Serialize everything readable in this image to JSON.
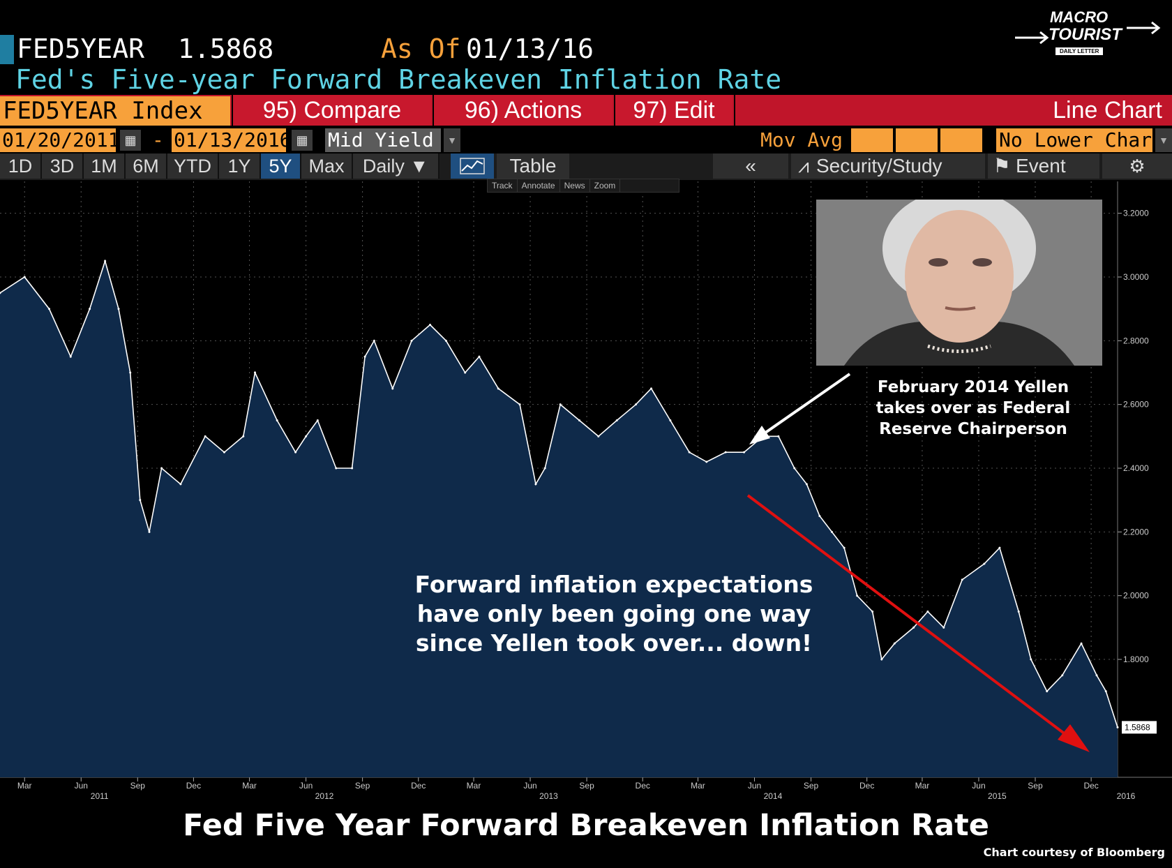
{
  "header": {
    "ticker": "FED5YEAR",
    "last_value": "1.5868",
    "as_of_label": "As Of",
    "as_of_date": "01/13/16",
    "description": "Fed's Five-year Forward Breakeven Inflation Rate"
  },
  "logo": {
    "line1": "MACRO",
    "line2": "TOURIST",
    "line3": "DAILY LETTER"
  },
  "menu": {
    "index": "FED5YEAR Index",
    "compare": "95) Compare",
    "actions": "96) Actions",
    "edit": "97) Edit",
    "chart_type": "Line Chart"
  },
  "range": {
    "start": "01/20/2011",
    "dash": "-",
    "end": "01/13/2016",
    "field": "Mid Yield",
    "mov_avg_label": "Mov Avg",
    "lower_chart": "No Lower Chart"
  },
  "periods": [
    "1D",
    "3D",
    "1M",
    "6M",
    "YTD",
    "1Y",
    "5Y",
    "Max",
    "Daily ▼"
  ],
  "active_period": "5Y",
  "toolbar": {
    "table": "Table",
    "collapse": "«",
    "security_study": "Security/Study",
    "event": "Event",
    "gear": "⚙"
  },
  "mini_tools": [
    "Track",
    "Annotate",
    "News",
    "Zoom"
  ],
  "annotations": {
    "yellen": "February 2014 Yellen takes over as Federal Reserve Chairperson",
    "forward": "Forward inflation expectations have only been going one way since Yellen took over... down!"
  },
  "footer": {
    "title": "Fed Five Year Forward Breakeven Inflation Rate",
    "credit": "Chart courtesy of Bloomberg"
  },
  "colors": {
    "area_fill": "#0f2a4a",
    "line": "#ffffff",
    "arrow_red": "#e01010",
    "orange": "#f7a13b",
    "cyan": "#5fd3e4",
    "menu_red": "#c0152a"
  },
  "chart_data": {
    "type": "area",
    "ylim": [
      1.43,
      3.3
    ],
    "y_ticks": [
      "3.2000",
      "3.0000",
      "2.8000",
      "2.6000",
      "2.4000",
      "2.2000",
      "2.0000",
      "1.8000"
    ],
    "last_label": "1.5868",
    "x_month_labels": [
      "Mar",
      "Jun",
      "Sep",
      "Dec",
      "Mar",
      "Jun",
      "Sep",
      "Dec",
      "Mar",
      "Jun",
      "Sep",
      "Dec",
      "Mar",
      "Jun",
      "Sep",
      "Dec",
      "Mar",
      "Jun",
      "Sep",
      "Dec"
    ],
    "x_year_labels": [
      "2011",
      "2012",
      "2013",
      "2014",
      "2015",
      "2016"
    ],
    "series": [
      {
        "x": [
          "2011-01-20",
          "2011-03-01",
          "2011-04-10",
          "2011-05-15",
          "2011-06-15",
          "2011-07-10",
          "2011-08-01",
          "2011-08-20",
          "2011-09-05",
          "2011-09-20",
          "2011-10-10",
          "2011-11-10",
          "2011-12-20",
          "2012-01-20",
          "2012-02-20",
          "2012-03-10",
          "2012-04-15",
          "2012-05-15",
          "2012-06-01",
          "2012-06-20",
          "2012-07-20",
          "2012-08-15",
          "2012-09-05",
          "2012-09-20",
          "2012-10-20",
          "2012-11-20",
          "2012-12-20",
          "2013-01-15",
          "2013-02-15",
          "2013-03-10",
          "2013-04-10",
          "2013-05-15",
          "2013-06-10",
          "2013-06-25",
          "2013-07-20",
          "2013-08-20",
          "2013-09-20",
          "2013-10-20",
          "2013-11-20",
          "2013-12-15",
          "2014-01-15",
          "2014-02-15",
          "2014-03-15",
          "2014-04-15",
          "2014-05-15",
          "2014-06-15",
          "2014-07-10",
          "2014-08-05",
          "2014-08-25",
          "2014-09-15",
          "2014-10-05",
          "2014-10-25",
          "2014-11-15",
          "2014-12-10",
          "2014-12-25",
          "2015-01-15",
          "2015-02-15",
          "2015-03-10",
          "2015-04-05",
          "2015-05-05",
          "2015-06-10",
          "2015-07-05",
          "2015-08-05",
          "2015-08-25",
          "2015-09-20",
          "2015-10-15",
          "2015-11-15",
          "2015-12-10",
          "2015-12-25",
          "2016-01-13"
        ],
        "y": [
          2.95,
          3.0,
          2.9,
          2.75,
          2.9,
          3.05,
          2.9,
          2.7,
          2.3,
          2.2,
          2.4,
          2.35,
          2.5,
          2.45,
          2.5,
          2.7,
          2.55,
          2.45,
          2.5,
          2.55,
          2.4,
          2.4,
          2.75,
          2.8,
          2.65,
          2.8,
          2.85,
          2.8,
          2.7,
          2.75,
          2.65,
          2.6,
          2.35,
          2.4,
          2.6,
          2.55,
          2.5,
          2.55,
          2.6,
          2.65,
          2.55,
          2.45,
          2.42,
          2.45,
          2.45,
          2.5,
          2.5,
          2.4,
          2.35,
          2.25,
          2.2,
          2.15,
          2.0,
          1.95,
          1.8,
          1.85,
          1.9,
          1.95,
          1.9,
          2.05,
          2.1,
          2.15,
          1.95,
          1.8,
          1.7,
          1.75,
          1.85,
          1.75,
          1.7,
          1.5868
        ]
      }
    ]
  }
}
